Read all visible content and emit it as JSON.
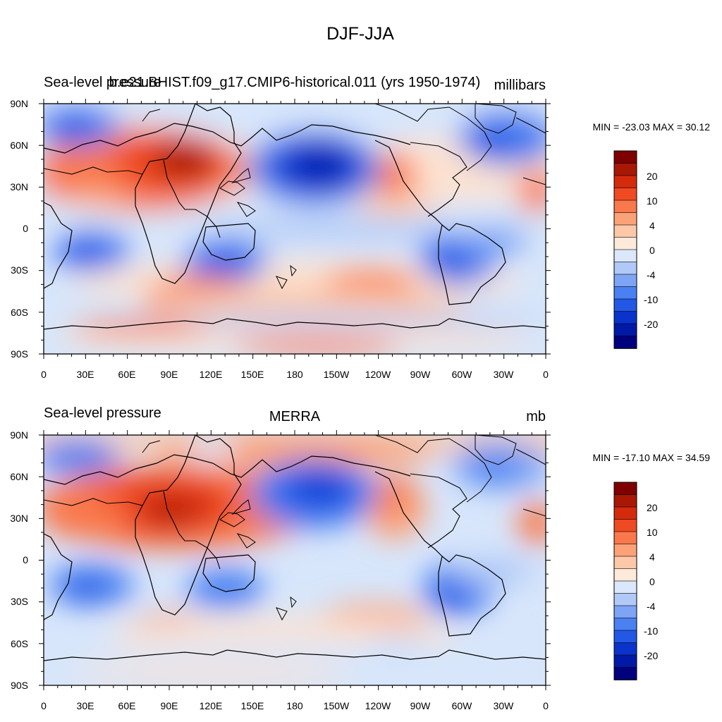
{
  "figure_title": "DJF-JJA",
  "x_tick_labels": [
    "0",
    "30E",
    "60E",
    "90E",
    "120E",
    "150E",
    "180",
    "150W",
    "120W",
    "90W",
    "60W",
    "30W",
    "0"
  ],
  "y_tick_labels": [
    "90N",
    "60N",
    "30N",
    "0",
    "30S",
    "60S",
    "90S"
  ],
  "colorbar": {
    "colors": [
      "#00007f",
      "#0019a6",
      "#0a33cc",
      "#2358e6",
      "#4a80f2",
      "#7da4f5",
      "#b0c9f7",
      "#dbe7fb",
      "#fdeadb",
      "#fdc8a8",
      "#fca278",
      "#f9784c",
      "#f04a22",
      "#d42b0c",
      "#a81805",
      "#7f0000"
    ],
    "labels": [
      "20",
      "10",
      "4",
      "0",
      "-4",
      "-10",
      "-20"
    ]
  },
  "panels": [
    {
      "left_title": "Sea-level pressure",
      "center_title": "b.e21.BHIST.f09_g17.CMIP6-historical.011 (yrs 1950-1974)",
      "right_title": "millibars",
      "min_max": "MIN = -23.03 MAX =  30.12"
    },
    {
      "left_title": "Sea-level pressure",
      "center_title": "MERRA",
      "right_title": "mb",
      "min_max": "MIN = -17.10 MAX =  34.59"
    }
  ]
}
